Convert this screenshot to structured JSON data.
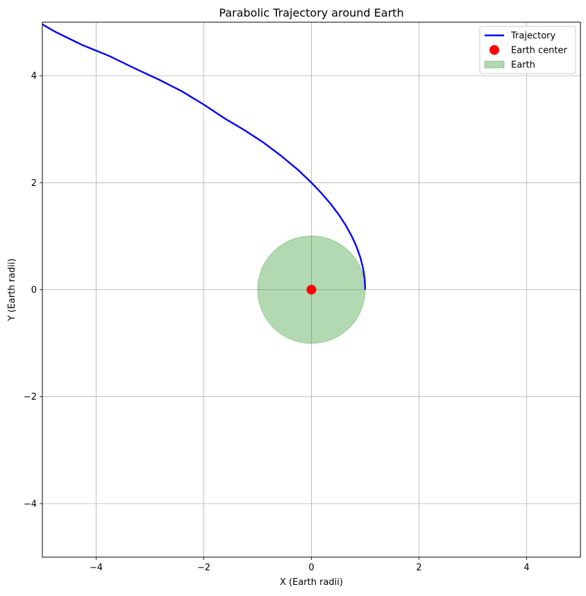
{
  "chart_data": {
    "type": "line",
    "title": "Parabolic Trajectory around Earth",
    "xlabel": "X (Earth radii)",
    "ylabel": "Y (Earth radii)",
    "xlim": [
      -5,
      5
    ],
    "ylim": [
      -5,
      5
    ],
    "xticks": [
      -4,
      -2,
      0,
      2,
      4
    ],
    "yticks": [
      -4,
      -2,
      0,
      2,
      4
    ],
    "xtick_labels": [
      "−4",
      "−2",
      "0",
      "2",
      "4"
    ],
    "ytick_labels": [
      "−4",
      "−2",
      "0",
      "2",
      "4"
    ],
    "grid": true,
    "legend_position": "top-right",
    "series": [
      {
        "name": "Trajectory",
        "kind": "line",
        "color": "#0000ff",
        "x": [
          1.0,
          0.99,
          0.96,
          0.91,
          0.84,
          0.75,
          0.64,
          0.51,
          0.36,
          0.19,
          0.0,
          -0.25,
          -0.56,
          -0.89,
          -1.24,
          -1.61,
          -2.0,
          -2.41,
          -2.84,
          -3.29,
          -3.76,
          -4.25,
          -4.76,
          -5.0
        ],
        "y": [
          0.0,
          0.2,
          0.4,
          0.6,
          0.8,
          1.0,
          1.2,
          1.4,
          1.6,
          1.8,
          2.0,
          2.24,
          2.5,
          2.75,
          2.98,
          3.2,
          3.46,
          3.71,
          3.93,
          4.14,
          4.37,
          4.57,
          4.82,
          4.96
        ]
      },
      {
        "name": "Earth center",
        "kind": "point",
        "color": "#ff0000",
        "x": [
          0
        ],
        "y": [
          0
        ]
      },
      {
        "name": "Earth",
        "kind": "circle",
        "color": "#008000",
        "fill_opacity": 0.3,
        "center": [
          0,
          0
        ],
        "radius": 1
      }
    ]
  }
}
